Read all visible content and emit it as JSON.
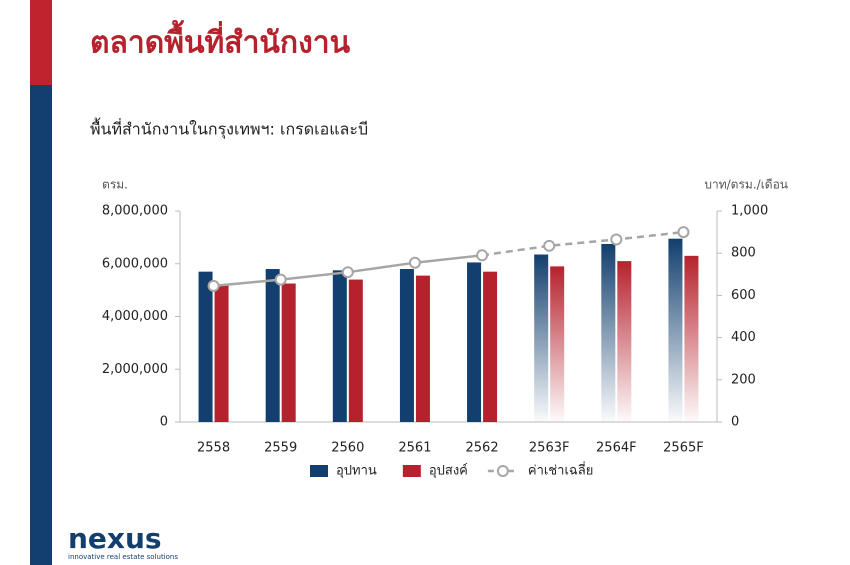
{
  "slide": {
    "title": "ตลาดพื้นที่สำนักงาน",
    "logo": "nexus",
    "tagline": "innovative real estate solutions"
  },
  "chart_data": {
    "type": "bar",
    "title": "พื้นที่สำนักงานในกรุงเทพฯ: เกรดเอและบี",
    "y_label": "ตรม.",
    "y2_label": "บาท/ตรม./เดือน",
    "categories": [
      "2558",
      "2559",
      "2560",
      "2561",
      "2562",
      "2563F",
      "2564F",
      "2565F"
    ],
    "series": [
      {
        "name": "อุปทาน",
        "color": "#123f6e",
        "values": [
          5700000,
          5800000,
          5750000,
          5800000,
          6050000,
          6350000,
          6750000,
          6950000
        ]
      },
      {
        "name": "อุปสงค์",
        "color": "#b5222d",
        "values": [
          5200000,
          5250000,
          5400000,
          5550000,
          5700000,
          5900000,
          6100000,
          6300000
        ]
      },
      {
        "name": "ค่าเช่าเฉลี่ย",
        "type": "line",
        "axis": "y2",
        "color": "#a6a6a6",
        "values": [
          645,
          675,
          710,
          755,
          790,
          835,
          865,
          900
        ]
      }
    ],
    "ylim": [
      0,
      8000000
    ],
    "yticks": [
      0,
      {
        "value": 2000000,
        "label": "2,000,000"
      },
      {
        "value": 4000000,
        "label": "4,000,000"
      },
      {
        "value": 6000000,
        "label": "6,000,000"
      },
      {
        "value": 8000000,
        "label": "8,000,000"
      }
    ],
    "y2lim": [
      0,
      1000
    ],
    "y2ticks": [
      0,
      200,
      400,
      600,
      800,
      {
        "value": 1000,
        "label": "1,000"
      }
    ],
    "legend": "bottom"
  }
}
